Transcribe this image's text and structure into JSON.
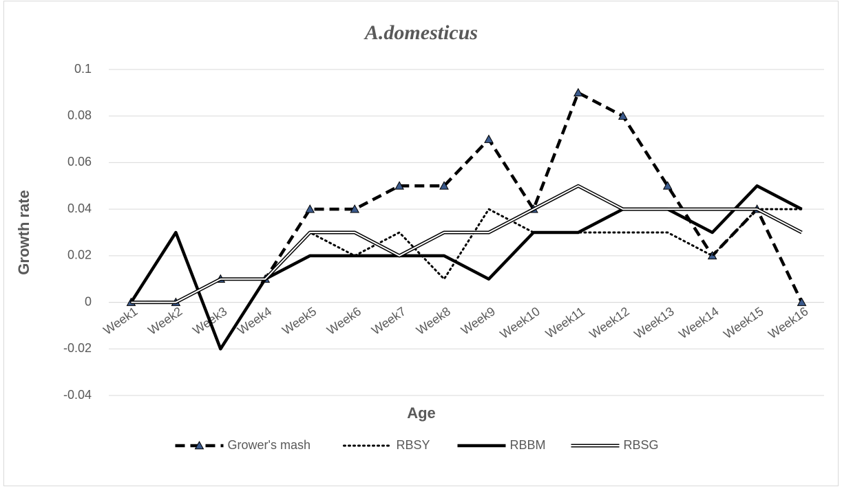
{
  "chart_data": {
    "type": "line",
    "title": "A.domesticus",
    "x_label": "Age",
    "y_label": "Growth rate",
    "categories": [
      "Week1",
      "Week2",
      "Week3",
      "Week4",
      "Week5",
      "Week6",
      "Week7",
      "Week8",
      "Week9",
      "Week10",
      "Week11",
      "Week12",
      "Week13",
      "Week14",
      "Week15",
      "Week16"
    ],
    "series": [
      {
        "name": "Grower's mash",
        "color": "#000000",
        "style": "dashed",
        "marker": "triangle",
        "marker_color": "#3b5a8c",
        "values": [
          0,
          0,
          0.01,
          0.01,
          0.04,
          0.04,
          0.05,
          0.05,
          0.07,
          0.04,
          0.09,
          0.08,
          0.05,
          0.02,
          0.04,
          0
        ]
      },
      {
        "name": "RBSY",
        "color": "#000000",
        "style": "dotted",
        "values": [
          0,
          0,
          0.01,
          0.01,
          0.03,
          0.02,
          0.03,
          0.01,
          0.04,
          0.03,
          0.03,
          0.03,
          0.03,
          0.02,
          0.04,
          0.04
        ]
      },
      {
        "name": "RBBM",
        "color": "#000000",
        "style": "solid",
        "values": [
          0,
          0.03,
          -0.02,
          0.01,
          0.02,
          0.02,
          0.02,
          0.02,
          0.01,
          0.03,
          0.03,
          0.04,
          0.04,
          0.03,
          0.05,
          0.04
        ]
      },
      {
        "name": "RBSG",
        "color": "#000000",
        "style": "double",
        "values": [
          0,
          0,
          0.01,
          0.01,
          0.03,
          0.03,
          0.02,
          0.03,
          0.03,
          0.04,
          0.05,
          0.04,
          0.04,
          0.04,
          0.04,
          0.03
        ]
      }
    ],
    "ylim": [
      -0.04,
      0.1
    ],
    "yticks": [
      -0.04,
      -0.02,
      0,
      0.02,
      0.04,
      0.06,
      0.08,
      0.1
    ],
    "grid": true,
    "legend": "bottom"
  }
}
